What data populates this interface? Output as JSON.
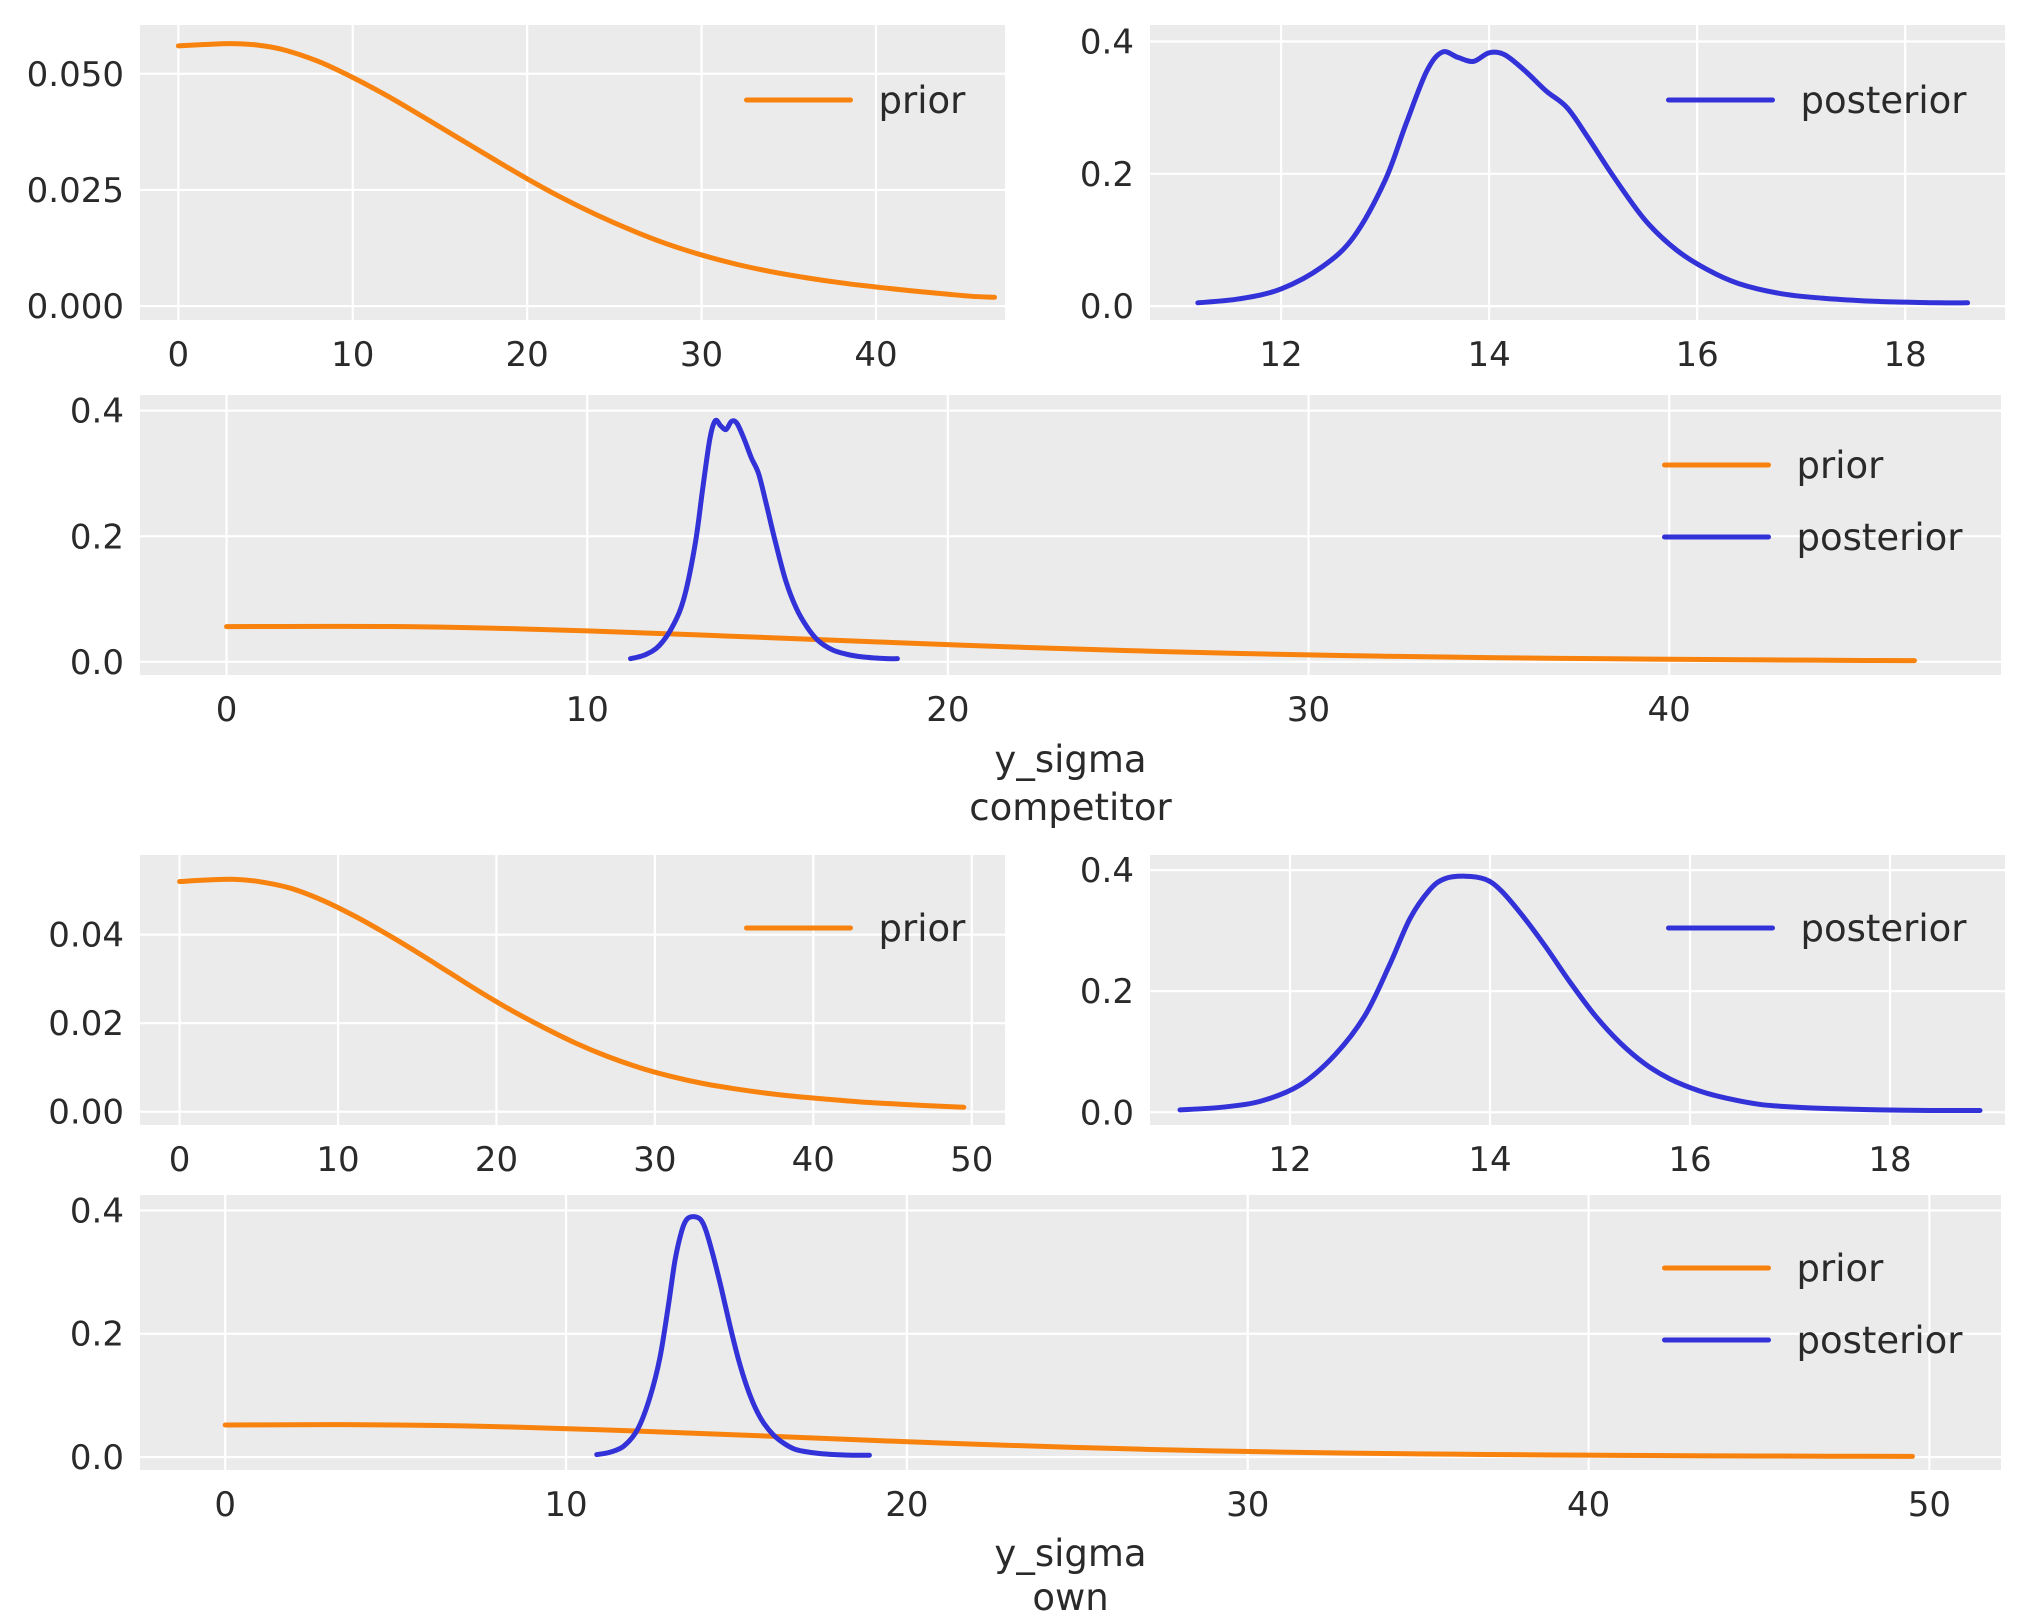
{
  "figure": {
    "background": "#ffffff",
    "axes_background": "#ebebeb",
    "grid_color": "#ffffff",
    "text_color": "#2a2a2a",
    "colors": {
      "prior": "#f8820e",
      "posterior": "#3232d8"
    }
  },
  "chart_data": {
    "type": "line",
    "description": "Prior and posterior density curves (KDE) for parameters y_sigma competitor and y_sigma own; grid on, seaborn-darkgrid style, legends upper right",
    "distributions": {
      "competitor_prior": [
        [
          0,
          0.056
        ],
        [
          1.5,
          0.0563
        ],
        [
          3,
          0.0565
        ],
        [
          4.5,
          0.0562
        ],
        [
          6,
          0.0552
        ],
        [
          8,
          0.0527
        ],
        [
          10,
          0.0492
        ],
        [
          12,
          0.0452
        ],
        [
          14,
          0.0408
        ],
        [
          16,
          0.0363
        ],
        [
          18,
          0.0318
        ],
        [
          20,
          0.0274
        ],
        [
          22,
          0.0233
        ],
        [
          24,
          0.0196
        ],
        [
          26,
          0.0163
        ],
        [
          28,
          0.0134
        ],
        [
          30,
          0.011
        ],
        [
          32,
          0.009
        ],
        [
          34,
          0.0074
        ],
        [
          36,
          0.0061
        ],
        [
          38,
          0.005
        ],
        [
          40,
          0.0041
        ],
        [
          42,
          0.0033
        ],
        [
          44,
          0.0026
        ],
        [
          45.5,
          0.0021
        ],
        [
          46.8,
          0.0019
        ]
      ],
      "competitor_posterior": [
        [
          11.2,
          0.005
        ],
        [
          11.6,
          0.011
        ],
        [
          12.0,
          0.026
        ],
        [
          12.4,
          0.06
        ],
        [
          12.7,
          0.105
        ],
        [
          13.0,
          0.19
        ],
        [
          13.2,
          0.275
        ],
        [
          13.4,
          0.355
        ],
        [
          13.55,
          0.384
        ],
        [
          13.7,
          0.376
        ],
        [
          13.85,
          0.37
        ],
        [
          14.0,
          0.383
        ],
        [
          14.15,
          0.38
        ],
        [
          14.35,
          0.355
        ],
        [
          14.55,
          0.325
        ],
        [
          14.75,
          0.3
        ],
        [
          14.95,
          0.255
        ],
        [
          15.2,
          0.195
        ],
        [
          15.5,
          0.13
        ],
        [
          15.8,
          0.085
        ],
        [
          16.1,
          0.055
        ],
        [
          16.4,
          0.034
        ],
        [
          16.8,
          0.019
        ],
        [
          17.2,
          0.012
        ],
        [
          17.6,
          0.008
        ],
        [
          18.0,
          0.006
        ],
        [
          18.3,
          0.005
        ],
        [
          18.6,
          0.005
        ]
      ],
      "own_prior": [
        [
          0,
          0.052
        ],
        [
          2,
          0.0524
        ],
        [
          3.5,
          0.0525
        ],
        [
          5,
          0.052
        ],
        [
          7,
          0.0505
        ],
        [
          9,
          0.0478
        ],
        [
          11,
          0.0443
        ],
        [
          13,
          0.0403
        ],
        [
          15,
          0.036
        ],
        [
          17,
          0.0315
        ],
        [
          19,
          0.027
        ],
        [
          21,
          0.0228
        ],
        [
          23,
          0.019
        ],
        [
          25,
          0.0155
        ],
        [
          27,
          0.0125
        ],
        [
          29,
          0.01
        ],
        [
          31,
          0.008
        ],
        [
          33,
          0.0064
        ],
        [
          35,
          0.0052
        ],
        [
          37,
          0.0042
        ],
        [
          39,
          0.0034
        ],
        [
          41,
          0.0028
        ],
        [
          43,
          0.0022
        ],
        [
          45,
          0.0018
        ],
        [
          47,
          0.0014
        ],
        [
          49.5,
          0.001
        ]
      ],
      "own_posterior": [
        [
          10.9,
          0.004
        ],
        [
          11.3,
          0.008
        ],
        [
          11.7,
          0.018
        ],
        [
          12.1,
          0.045
        ],
        [
          12.45,
          0.095
        ],
        [
          12.75,
          0.16
        ],
        [
          13.0,
          0.245
        ],
        [
          13.2,
          0.32
        ],
        [
          13.4,
          0.368
        ],
        [
          13.55,
          0.386
        ],
        [
          13.75,
          0.39
        ],
        [
          13.95,
          0.385
        ],
        [
          14.1,
          0.368
        ],
        [
          14.3,
          0.33
        ],
        [
          14.55,
          0.275
        ],
        [
          14.8,
          0.215
        ],
        [
          15.05,
          0.16
        ],
        [
          15.3,
          0.115
        ],
        [
          15.55,
          0.08
        ],
        [
          15.8,
          0.055
        ],
        [
          16.1,
          0.035
        ],
        [
          16.4,
          0.022
        ],
        [
          16.7,
          0.013
        ],
        [
          17.0,
          0.009
        ],
        [
          17.4,
          0.006
        ],
        [
          17.9,
          0.004
        ],
        [
          18.4,
          0.003
        ],
        [
          18.9,
          0.003
        ]
      ]
    },
    "charts": [
      {
        "id": "competitor-prior",
        "xlim": [
          -2.2,
          47.4
        ],
        "ylim": [
          -0.003,
          0.0605
        ],
        "xticks": [
          0,
          10,
          20,
          30,
          40
        ],
        "xtick_labels": [
          "0",
          "10",
          "20",
          "30",
          "40"
        ],
        "yticks": [
          0,
          0.025,
          0.05
        ],
        "ytick_labels": [
          "0.000",
          "0.025",
          "0.050"
        ],
        "series": [
          {
            "name": "prior",
            "color": "prior",
            "ref": "competitor_prior"
          }
        ],
        "legend": [
          {
            "label": "prior",
            "color": "prior"
          }
        ],
        "xlabel": []
      },
      {
        "id": "competitor-posterior",
        "xlim": [
          10.74,
          18.96
        ],
        "ylim": [
          -0.021,
          0.425
        ],
        "xticks": [
          12,
          14,
          16,
          18
        ],
        "xtick_labels": [
          "12",
          "14",
          "16",
          "18"
        ],
        "yticks": [
          0,
          0.2,
          0.4
        ],
        "ytick_labels": [
          "0.0",
          "0.2",
          "0.4"
        ],
        "series": [
          {
            "name": "posterior",
            "color": "posterior",
            "ref": "competitor_posterior"
          }
        ],
        "legend": [
          {
            "label": "posterior",
            "color": "posterior"
          }
        ],
        "xlabel": []
      },
      {
        "id": "competitor-combined",
        "xlim": [
          -2.4,
          49.2
        ],
        "ylim": [
          -0.021,
          0.425
        ],
        "xticks": [
          0,
          10,
          20,
          30,
          40
        ],
        "xtick_labels": [
          "0",
          "10",
          "20",
          "30",
          "40"
        ],
        "yticks": [
          0,
          0.2,
          0.4
        ],
        "ytick_labels": [
          "0.0",
          "0.2",
          "0.4"
        ],
        "series": [
          {
            "name": "prior",
            "color": "prior",
            "ref": "competitor_prior"
          },
          {
            "name": "posterior",
            "color": "posterior",
            "ref": "competitor_posterior"
          }
        ],
        "legend": [
          {
            "label": "prior",
            "color": "prior"
          },
          {
            "label": "posterior",
            "color": "posterior"
          }
        ],
        "xlabel": [
          "y_sigma",
          "competitor"
        ]
      },
      {
        "id": "own-prior",
        "xlim": [
          -2.5,
          52.1
        ],
        "ylim": [
          -0.003,
          0.058
        ],
        "xticks": [
          0,
          10,
          20,
          30,
          40,
          50
        ],
        "xtick_labels": [
          "0",
          "10",
          "20",
          "30",
          "40",
          "50"
        ],
        "yticks": [
          0,
          0.02,
          0.04
        ],
        "ytick_labels": [
          "0.00",
          "0.02",
          "0.04"
        ],
        "series": [
          {
            "name": "prior",
            "color": "prior",
            "ref": "own_prior"
          }
        ],
        "legend": [
          {
            "label": "prior",
            "color": "prior"
          }
        ],
        "xlabel": []
      },
      {
        "id": "own-posterior",
        "xlim": [
          10.6,
          19.15
        ],
        "ylim": [
          -0.021,
          0.425
        ],
        "xticks": [
          12,
          14,
          16,
          18
        ],
        "xtick_labels": [
          "12",
          "14",
          "16",
          "18"
        ],
        "yticks": [
          0,
          0.2,
          0.4
        ],
        "ytick_labels": [
          "0.0",
          "0.2",
          "0.4"
        ],
        "series": [
          {
            "name": "posterior",
            "color": "posterior",
            "ref": "own_posterior"
          }
        ],
        "legend": [
          {
            "label": "posterior",
            "color": "posterior"
          }
        ],
        "xlabel": []
      },
      {
        "id": "own-combined",
        "xlim": [
          -2.5,
          52.1
        ],
        "ylim": [
          -0.021,
          0.425
        ],
        "xticks": [
          0,
          10,
          20,
          30,
          40,
          50
        ],
        "xtick_labels": [
          "0",
          "10",
          "20",
          "30",
          "40",
          "50"
        ],
        "yticks": [
          0,
          0.2,
          0.4
        ],
        "ytick_labels": [
          "0.0",
          "0.2",
          "0.4"
        ],
        "series": [
          {
            "name": "prior",
            "color": "prior",
            "ref": "own_prior"
          },
          {
            "name": "posterior",
            "color": "posterior",
            "ref": "own_posterior"
          }
        ],
        "legend": [
          {
            "label": "prior",
            "color": "prior"
          },
          {
            "label": "posterior",
            "color": "posterior"
          }
        ],
        "xlabel": [
          "y_sigma",
          "own"
        ]
      }
    ]
  }
}
